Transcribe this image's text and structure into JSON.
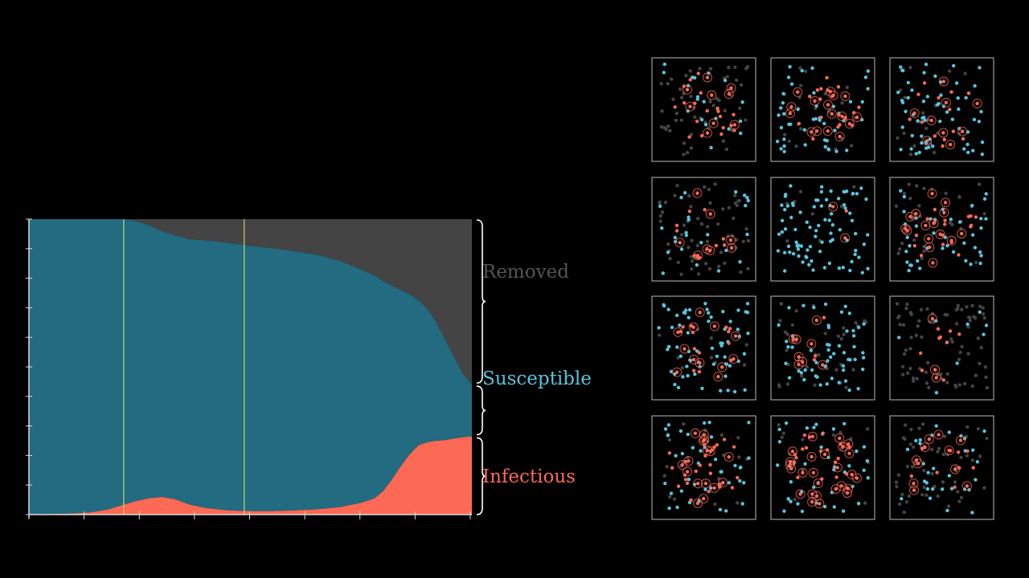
{
  "chart_data": {
    "type": "area",
    "stacked": true,
    "normalized": true,
    "x_ticks_count": 9,
    "y_ticks_count": 11,
    "ylim": [
      0,
      1
    ],
    "xlim": [
      0,
      100
    ],
    "vertical_markers": [
      21.4,
      48.6
    ],
    "series": [
      {
        "name": "Infectious",
        "color": "#FC6955",
        "x": [
          0,
          5,
          10,
          14,
          18,
          21,
          24,
          27,
          30,
          33,
          36,
          40,
          45,
          50,
          55,
          60,
          65,
          70,
          75,
          78,
          80,
          82,
          84,
          86,
          88,
          90,
          92,
          94,
          96,
          98,
          100
        ],
        "values": [
          0.0,
          0.002,
          0.004,
          0.008,
          0.018,
          0.032,
          0.045,
          0.055,
          0.06,
          0.052,
          0.035,
          0.022,
          0.014,
          0.012,
          0.012,
          0.014,
          0.018,
          0.025,
          0.04,
          0.055,
          0.08,
          0.12,
          0.165,
          0.205,
          0.235,
          0.245,
          0.25,
          0.252,
          0.258,
          0.262,
          0.265
        ]
      },
      {
        "name": "Susceptible",
        "color": "#236B80",
        "x": [
          0,
          5,
          10,
          14,
          18,
          21,
          24,
          27,
          30,
          33,
          36,
          40,
          45,
          50,
          55,
          60,
          65,
          70,
          75,
          78,
          80,
          82,
          84,
          86,
          88,
          90,
          92,
          94,
          96,
          98,
          100
        ],
        "values": [
          1.0,
          0.998,
          0.996,
          0.992,
          0.982,
          0.968,
          0.949,
          0.925,
          0.9,
          0.893,
          0.898,
          0.906,
          0.906,
          0.898,
          0.89,
          0.878,
          0.862,
          0.835,
          0.79,
          0.755,
          0.71,
          0.655,
          0.595,
          0.54,
          0.49,
          0.45,
          0.4,
          0.34,
          0.275,
          0.215,
          0.175
        ]
      },
      {
        "name": "Removed",
        "color": "#444444",
        "x": [
          0,
          5,
          10,
          14,
          18,
          21,
          24,
          27,
          30,
          33,
          36,
          40,
          45,
          50,
          55,
          60,
          65,
          70,
          75,
          78,
          80,
          82,
          84,
          86,
          88,
          90,
          92,
          94,
          96,
          98,
          100
        ],
        "values": [
          0.0,
          0.0,
          0.0,
          0.0,
          0.0,
          0.0,
          0.006,
          0.02,
          0.04,
          0.055,
          0.067,
          0.072,
          0.08,
          0.09,
          0.098,
          0.108,
          0.12,
          0.14,
          0.17,
          0.19,
          0.21,
          0.225,
          0.24,
          0.255,
          0.275,
          0.305,
          0.35,
          0.408,
          0.467,
          0.523,
          0.56
        ]
      }
    ],
    "legend": {
      "placement": "right",
      "labels": [
        "Removed",
        "Susceptible",
        "Infectious"
      ],
      "colors": [
        "#555555",
        "#58C4DD",
        "#FC6955"
      ]
    }
  },
  "legend_labels": {
    "removed": "Removed",
    "susceptible": "Susceptible",
    "infectious": "Infectious"
  },
  "simulation_grid": {
    "rows": 4,
    "cols": 3,
    "box_stroke": "#BBBBBB",
    "colors": {
      "susceptible": "#58C4DD",
      "infectious": "#FC6955",
      "removed": "#444444"
    },
    "boxes": [
      {
        "id": 0,
        "susceptible": 20,
        "infectious": 28,
        "removed": 52,
        "seed": 11
      },
      {
        "id": 1,
        "susceptible": 45,
        "infectious": 35,
        "removed": 20,
        "seed": 23
      },
      {
        "id": 2,
        "susceptible": 60,
        "infectious": 22,
        "removed": 18,
        "seed": 37
      },
      {
        "id": 3,
        "susceptible": 25,
        "infectious": 18,
        "removed": 57,
        "seed": 41
      },
      {
        "id": 4,
        "susceptible": 88,
        "infectious": 3,
        "removed": 9,
        "seed": 53
      },
      {
        "id": 5,
        "susceptible": 40,
        "infectious": 32,
        "removed": 28,
        "seed": 67
      },
      {
        "id": 6,
        "susceptible": 65,
        "infectious": 25,
        "removed": 10,
        "seed": 71
      },
      {
        "id": 7,
        "susceptible": 55,
        "infectious": 12,
        "removed": 33,
        "seed": 83
      },
      {
        "id": 8,
        "susceptible": 8,
        "infectious": 12,
        "removed": 80,
        "seed": 97
      },
      {
        "id": 9,
        "susceptible": 40,
        "infectious": 40,
        "removed": 20,
        "seed": 101
      },
      {
        "id": 10,
        "susceptible": 40,
        "infectious": 45,
        "removed": 15,
        "seed": 113
      },
      {
        "id": 11,
        "susceptible": 30,
        "infectious": 20,
        "removed": 50,
        "seed": 127
      }
    ]
  }
}
